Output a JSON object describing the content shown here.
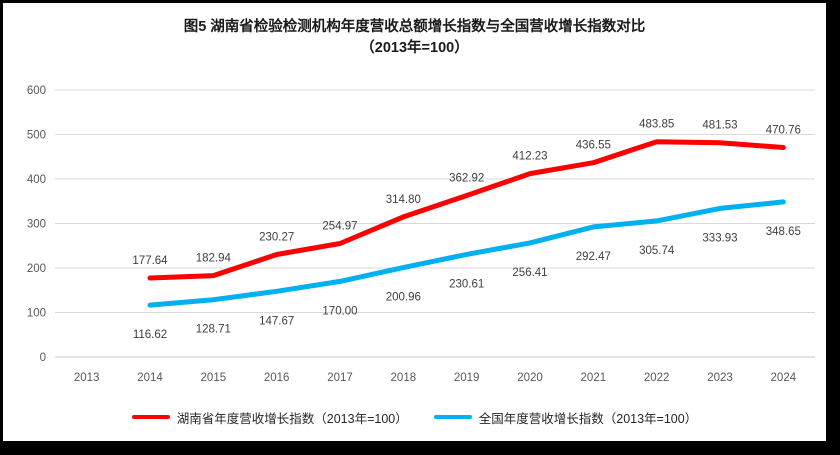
{
  "title": {
    "line1": "图5 湖南省检验检测机构年度营收总额增长指数与全国营收增长指数对比",
    "line2": "（2013年=100）"
  },
  "chart_data": {
    "type": "line",
    "categories": [
      "2013",
      "2014",
      "2015",
      "2016",
      "2017",
      "2018",
      "2019",
      "2020",
      "2021",
      "2022",
      "2023",
      "2024"
    ],
    "series": [
      {
        "name": "湖南省年度营收增长指数（2013年=100）",
        "color": "#FF0000",
        "label_position": "above",
        "values": [
          null,
          177.64,
          182.94,
          230.27,
          254.97,
          314.8,
          362.92,
          412.23,
          436.55,
          483.85,
          481.53,
          470.76
        ]
      },
      {
        "name": "全国年度营收增长指数（2013年=100）",
        "color": "#00B0F0",
        "label_position": "below",
        "values": [
          null,
          116.62,
          128.71,
          147.67,
          170.0,
          200.96,
          230.61,
          256.41,
          292.47,
          305.74,
          333.93,
          348.65
        ]
      }
    ],
    "ylim": [
      0,
      600
    ],
    "ytick_step": 100,
    "grid": true,
    "legend_position": "bottom",
    "data_label_decimals": 2
  },
  "colors": {
    "gridline": "#D9D9D9",
    "axis_line": "#C9C9C9",
    "axis_text": "#595959",
    "data_label_text": "#404040",
    "frame_border": "#000000",
    "background": "#FFFFFF"
  }
}
